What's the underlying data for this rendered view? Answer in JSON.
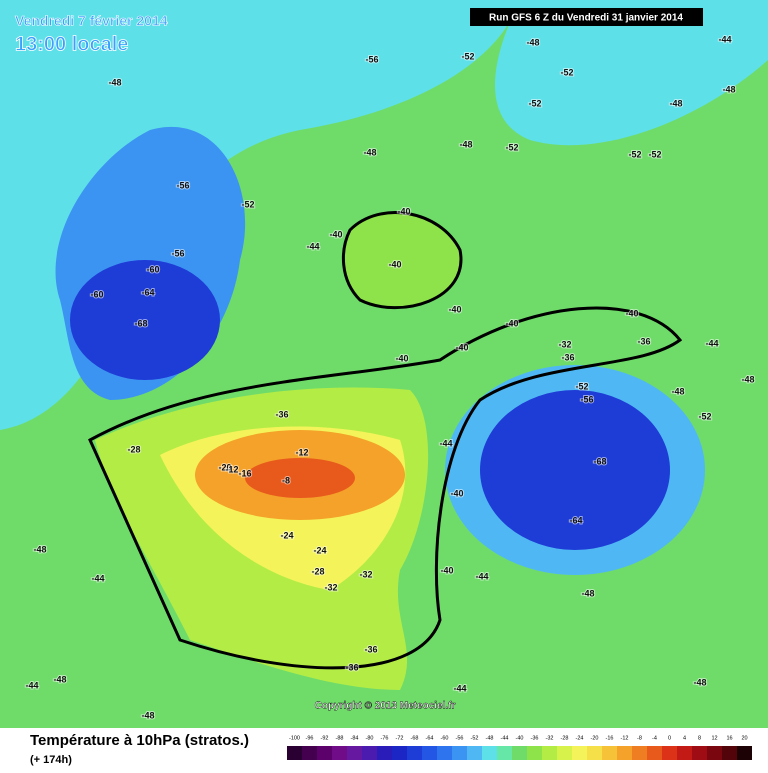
{
  "header": {
    "date": "Vendredi 7 février 2014",
    "time": "13:00 locale",
    "run": "Run GFS 6 Z du Vendredi 31 janvier 2014"
  },
  "footer": {
    "title": "Température à 10hPa (stratos.)",
    "range": "(+ 174h)",
    "copyright": "Copyright © 2013 Meteociel.fr"
  },
  "legend": {
    "values": [
      -100,
      -96,
      -92,
      -88,
      -84,
      -80,
      -76,
      -72,
      -68,
      -64,
      -60,
      -56,
      -52,
      -48,
      -44,
      -40,
      -36,
      -32,
      -28,
      -24,
      -20,
      -16,
      -12,
      -8,
      -4,
      0,
      4,
      8,
      12,
      16,
      20
    ],
    "colors": [
      "#2a0033",
      "#44004f",
      "#5c006b",
      "#700c88",
      "#6618a0",
      "#4b1bb0",
      "#2a1cb8",
      "#1c26c4",
      "#1e3cd6",
      "#2456e6",
      "#2e74ee",
      "#3c94f2",
      "#4fb8f4",
      "#5ee0e8",
      "#66e7a8",
      "#6fdc6a",
      "#8ee24a",
      "#b4ec46",
      "#d8f24c",
      "#f4f45a",
      "#f6e04a",
      "#f6c238",
      "#f4a22a",
      "#ef7e22",
      "#e85a1c",
      "#dc3318",
      "#c41a16",
      "#a00c14",
      "#7a0610",
      "#52040a",
      "#1c0204"
    ]
  },
  "map": {
    "labels": [
      -48,
      -56,
      -48,
      -52,
      -52,
      -52,
      -56,
      -52,
      -56,
      -60,
      -64,
      -60,
      -68,
      -48,
      -48,
      -52,
      -52,
      -52,
      -40,
      -40,
      -44,
      -40,
      -40,
      -40,
      -40,
      -32,
      -36,
      -36,
      -40,
      -40,
      -52,
      -56,
      -68,
      -64,
      -44,
      -40,
      -36,
      -28,
      -20,
      -12,
      -16,
      -12,
      -8,
      -24,
      -24,
      -28,
      -32,
      -32,
      -36,
      -36,
      -40,
      -44,
      -48,
      -44,
      -48,
      -48,
      -44,
      -48,
      -44,
      -48,
      -44,
      -48,
      -44,
      -48,
      -48,
      -52,
      -48
    ]
  }
}
